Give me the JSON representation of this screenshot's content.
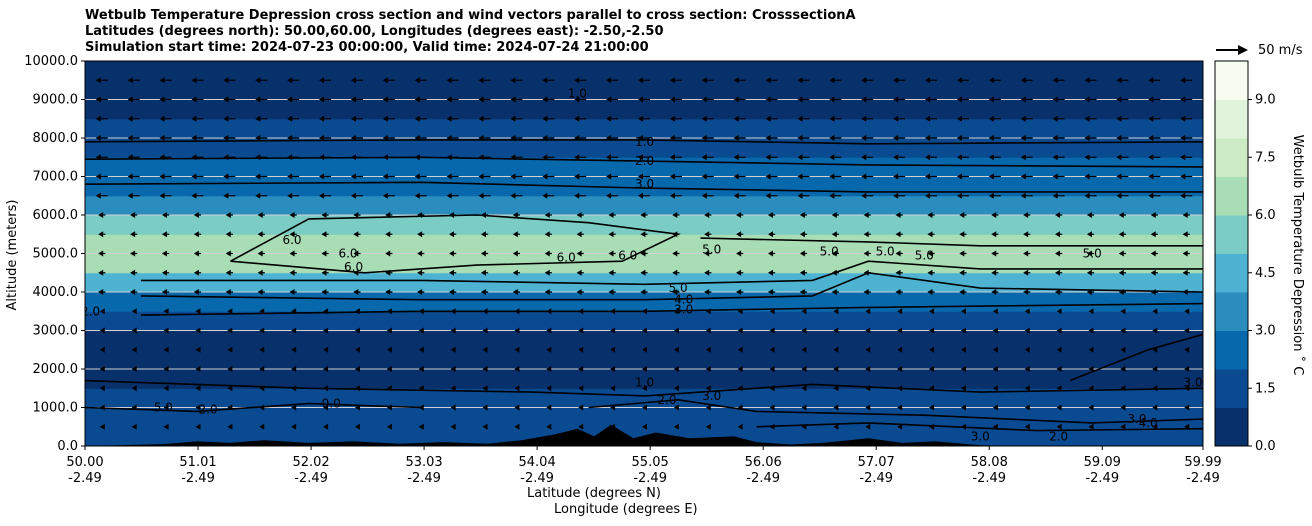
{
  "title_lines": [
    "Wetbulb Temperature Depression cross section and wind vectors parallel to cross section: CrosssectionA",
    "Latitudes (degrees north): 50.00,60.00, Longitudes (degrees east): -2.50,-2.50",
    "Simulation start time: 2024-07-23 00:00:00, Valid time: 2024-07-24 21:00:00"
  ],
  "vector_key_label": "50 m/s",
  "colorbar_label": "Wetbulb Temperature Depression ˚ C",
  "colorbar_ticks": [
    "0.0",
    "1.5",
    "3.0",
    "4.5",
    "6.0",
    "7.5",
    "9.0"
  ],
  "colorbar_values": [
    0.0,
    1.5,
    3.0,
    4.5,
    6.0,
    7.5,
    9.0
  ],
  "colorbar_range": [
    0,
    10
  ],
  "colors": {
    "cmap": [
      "#08306b",
      "#0a4a90",
      "#0868ac",
      "#2b8cbe",
      "#4eb3d3",
      "#7bccc4",
      "#a8ddb5",
      "#ccebc5",
      "#e0f3db",
      "#f7fcf0"
    ],
    "terrain": "#000000",
    "gridline": "#d0d0d0"
  },
  "chart_data": {
    "type": "heatmap",
    "variable": "Wetbulb Temperature Depression",
    "ylabel": "Altitude (meters)",
    "xlabel_lines": [
      "Latitude (degrees N)",
      "Longitude (degrees E)"
    ],
    "ylim": [
      0,
      10000
    ],
    "yticks": [
      "0.0",
      "1000.0",
      "2000.0",
      "3000.0",
      "4000.0",
      "5000.0",
      "6000.0",
      "7000.0",
      "8000.0",
      "9000.0",
      "10000.0"
    ],
    "ytick_values": [
      0,
      1000,
      2000,
      3000,
      4000,
      5000,
      6000,
      7000,
      8000,
      9000,
      10000
    ],
    "xlim": [
      50.0,
      59.99
    ],
    "xtick_lat": [
      "50.00",
      "51.01",
      "52.02",
      "53.03",
      "54.04",
      "55.05",
      "56.06",
      "57.07",
      "58.08",
      "59.09",
      "59.99"
    ],
    "xtick_lon": [
      "-2.49",
      "-2.49",
      "-2.49",
      "-2.49",
      "-2.49",
      "-2.49",
      "-2.49",
      "-2.49",
      "-2.49",
      "-2.49",
      "-2.49"
    ],
    "xtick_values": [
      50.0,
      51.01,
      52.02,
      53.03,
      54.04,
      55.05,
      56.06,
      57.07,
      58.08,
      59.09,
      59.99
    ],
    "grid": "horizontal",
    "depression_profile": [
      {
        "alt": 0,
        "value": 1.5
      },
      {
        "alt": 500,
        "value": 2.0
      },
      {
        "alt": 1000,
        "value": 1.5
      },
      {
        "alt": 1500,
        "value": 0.8
      },
      {
        "alt": 2000,
        "value": 0.5
      },
      {
        "alt": 2500,
        "value": 0.6
      },
      {
        "alt": 3000,
        "value": 1.0
      },
      {
        "alt": 3500,
        "value": 2.0
      },
      {
        "alt": 4000,
        "value": 3.5
      },
      {
        "alt": 4500,
        "value": 5.5
      },
      {
        "alt": 5000,
        "value": 6.5
      },
      {
        "alt": 5500,
        "value": 6.0
      },
      {
        "alt": 6000,
        "value": 4.5
      },
      {
        "alt": 6500,
        "value": 3.0
      },
      {
        "alt": 7000,
        "value": 2.5
      },
      {
        "alt": 7500,
        "value": 2.0
      },
      {
        "alt": 8000,
        "value": 1.2
      },
      {
        "alt": 8500,
        "value": 0.8
      },
      {
        "alt": 9000,
        "value": 0.5
      },
      {
        "alt": 10000,
        "value": 0.3
      }
    ],
    "contours": [
      {
        "label": "1.0",
        "points": [
          [
            50.0,
            7900
          ],
          [
            53.0,
            7950
          ],
          [
            55.0,
            7950
          ],
          [
            57.0,
            7850
          ],
          [
            59.99,
            7900
          ]
        ]
      },
      {
        "label": "2.0",
        "points": [
          [
            50.0,
            7450
          ],
          [
            53.0,
            7500
          ],
          [
            55.0,
            7400
          ],
          [
            57.0,
            7300
          ],
          [
            59.99,
            7250
          ]
        ]
      },
      {
        "label": "3.0",
        "points": [
          [
            50.0,
            6800
          ],
          [
            53.0,
            6850
          ],
          [
            55.0,
            6700
          ],
          [
            57.0,
            6600
          ],
          [
            59.99,
            6600
          ]
        ]
      },
      {
        "label": "6.0",
        "points": [
          [
            51.3,
            4800
          ],
          [
            52.0,
            5900
          ],
          [
            53.5,
            6000
          ],
          [
            54.5,
            5800
          ],
          [
            55.3,
            5500
          ],
          [
            54.8,
            4800
          ],
          [
            53.5,
            4700
          ],
          [
            52.5,
            4500
          ],
          [
            51.3,
            4800
          ]
        ]
      },
      {
        "label": "5.0",
        "points": [
          [
            55.5,
            5400
          ],
          [
            57.0,
            5300
          ],
          [
            58.0,
            5200
          ],
          [
            59.99,
            5200
          ]
        ]
      },
      {
        "label": "5.0",
        "points": [
          [
            50.5,
            4300
          ],
          [
            53.0,
            4300
          ],
          [
            55.0,
            4200
          ],
          [
            56.5,
            4300
          ],
          [
            57.0,
            4800
          ],
          [
            58.0,
            4600
          ],
          [
            59.99,
            4600
          ]
        ]
      },
      {
        "label": "4.0",
        "points": [
          [
            50.5,
            3900
          ],
          [
            53.0,
            3800
          ],
          [
            55.0,
            3800
          ],
          [
            56.5,
            3900
          ],
          [
            57.0,
            4500
          ],
          [
            58.0,
            4100
          ],
          [
            59.99,
            4000
          ]
        ]
      },
      {
        "label": "2.0",
        "points": [
          [
            50.5,
            3400
          ],
          [
            53.0,
            3500
          ],
          [
            55.0,
            3500
          ],
          [
            57.0,
            3600
          ],
          [
            59.99,
            3700
          ]
        ]
      },
      {
        "label": "1.0",
        "points": [
          [
            50.0,
            1700
          ],
          [
            52.0,
            1500
          ],
          [
            54.0,
            1400
          ],
          [
            55.0,
            1300
          ],
          [
            56.5,
            1600
          ],
          [
            58.0,
            1400
          ],
          [
            59.99,
            1500
          ]
        ]
      },
      {
        "label": "2.0",
        "points": [
          [
            54.5,
            1000
          ],
          [
            55.3,
            1200
          ],
          [
            56.0,
            900
          ],
          [
            57.5,
            800
          ],
          [
            59.0,
            600
          ],
          [
            59.99,
            700
          ]
        ]
      },
      {
        "label": "3.0",
        "points": [
          [
            56.0,
            500
          ],
          [
            57.0,
            600
          ],
          [
            58.5,
            400
          ],
          [
            59.99,
            450
          ]
        ]
      },
      {
        "label": "3.0",
        "points": [
          [
            58.8,
            1700
          ],
          [
            59.5,
            2500
          ],
          [
            59.99,
            2900
          ]
        ]
      },
      {
        "label": "0.0",
        "points": [
          [
            50.0,
            1000
          ],
          [
            51.0,
            900
          ],
          [
            52.0,
            1100
          ],
          [
            53.0,
            1000
          ]
        ]
      }
    ],
    "contour_labels": [
      {
        "text": "1.0",
        "x": 55.0,
        "y": 7900
      },
      {
        "text": "2.0",
        "x": 55.0,
        "y": 7400
      },
      {
        "text": "3.0",
        "x": 55.0,
        "y": 6800
      },
      {
        "text": "6.0",
        "x": 51.85,
        "y": 5350
      },
      {
        "text": "6.0",
        "x": 52.35,
        "y": 5000
      },
      {
        "text": "6.0",
        "x": 52.4,
        "y": 4650
      },
      {
        "text": "6.0",
        "x": 54.3,
        "y": 4900
      },
      {
        "text": "6.0",
        "x": 54.85,
        "y": 4950
      },
      {
        "text": "5.0",
        "x": 56.65,
        "y": 5050
      },
      {
        "text": "5.0",
        "x": 57.15,
        "y": 5050
      },
      {
        "text": "5.0",
        "x": 57.5,
        "y": 4950
      },
      {
        "text": "5.0",
        "x": 59.0,
        "y": 5000
      },
      {
        "text": "5.0",
        "x": 55.3,
        "y": 4100
      },
      {
        "text": "4.0",
        "x": 55.35,
        "y": 3800
      },
      {
        "text": "3.0",
        "x": 55.35,
        "y": 3550
      },
      {
        "text": "5.0",
        "x": 55.6,
        "y": 5100
      },
      {
        "text": "2.0",
        "x": 50.05,
        "y": 3500
      },
      {
        "text": "1.0",
        "x": 55.0,
        "y": 1650
      },
      {
        "text": "2.0",
        "x": 55.2,
        "y": 1200
      },
      {
        "text": "3.0",
        "x": 55.6,
        "y": 1300
      },
      {
        "text": "0.0",
        "x": 52.2,
        "y": 1100
      },
      {
        "text": "5.0",
        "x": 50.7,
        "y": 1000
      },
      {
        "text": "2.0",
        "x": 51.1,
        "y": 950
      },
      {
        "text": "3.0",
        "x": 58.0,
        "y": 250
      },
      {
        "text": "2.0",
        "x": 58.7,
        "y": 250
      },
      {
        "text": "3.0",
        "x": 59.9,
        "y": 1650
      },
      {
        "text": "3.0",
        "x": 59.4,
        "y": 700
      },
      {
        "text": "4.0",
        "x": 59.5,
        "y": 600
      },
      {
        "text": "1.0",
        "x": 54.4,
        "y": 9150
      }
    ],
    "wind_vectors": {
      "direction": "westward (right to left)",
      "upper_level_m_s": 8,
      "low_level_m_s": 2,
      "reference_m_s": 50
    },
    "terrain_profile": [
      [
        50.0,
        0
      ],
      [
        50.7,
        50
      ],
      [
        51.0,
        120
      ],
      [
        51.3,
        80
      ],
      [
        51.6,
        150
      ],
      [
        52.0,
        80
      ],
      [
        52.4,
        120
      ],
      [
        52.8,
        60
      ],
      [
        53.2,
        100
      ],
      [
        53.6,
        60
      ],
      [
        53.9,
        150
      ],
      [
        54.2,
        300
      ],
      [
        54.4,
        450
      ],
      [
        54.55,
        250
      ],
      [
        54.7,
        550
      ],
      [
        54.9,
        200
      ],
      [
        55.1,
        350
      ],
      [
        55.4,
        200
      ],
      [
        55.8,
        250
      ],
      [
        56.0,
        100
      ],
      [
        56.3,
        40
      ],
      [
        56.6,
        80
      ],
      [
        57.0,
        200
      ],
      [
        57.3,
        80
      ],
      [
        57.6,
        120
      ],
      [
        58.0,
        20
      ],
      [
        58.5,
        0
      ],
      [
        59.99,
        0
      ]
    ]
  }
}
